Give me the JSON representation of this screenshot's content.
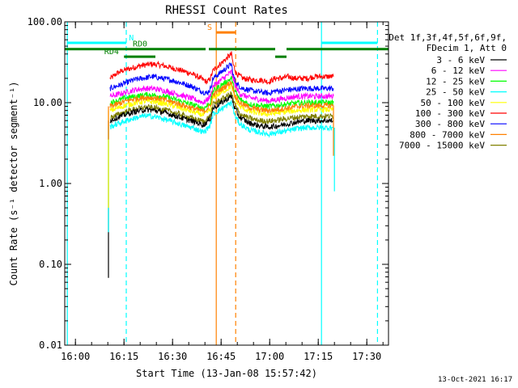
{
  "chart_data": {
    "type": "line",
    "title": "RHESSI Count Rates",
    "xlabel": "Start Time (13-Jan-08 15:57:42)",
    "ylabel": "Count Rate (s⁻¹ detector segment⁻¹)",
    "x_unit": "minutes after 15:57:42",
    "xlim": [
      -1,
      99
    ],
    "ylim": [
      0.01,
      100
    ],
    "yscale": "log",
    "x_ticks": [
      {
        "label": "16:00",
        "value": 2.3
      },
      {
        "label": "16:15",
        "value": 17.3
      },
      {
        "label": "16:30",
        "value": 32.3
      },
      {
        "label": "16:45",
        "value": 47.3
      },
      {
        "label": "17:00",
        "value": 62.3
      },
      {
        "label": "17:15",
        "value": 77.3
      },
      {
        "label": "17:30",
        "value": 92.3
      }
    ],
    "y_ticks": [
      {
        "label": "0.01",
        "value": 0.01
      },
      {
        "label": "0.10",
        "value": 0.1
      },
      {
        "label": "1.00",
        "value": 1
      },
      {
        "label": "10.00",
        "value": 10
      },
      {
        "label": "100.00",
        "value": 100
      }
    ],
    "legend": {
      "position": "right",
      "header": [
        "Det 1f,3f,4f,5f,6f,9f,",
        "FDecim 1, Att 0"
      ],
      "entries": [
        {
          "label": "3 - 6 keV",
          "color": "#000000"
        },
        {
          "label": "6 - 12 keV",
          "color": "#ff00ff"
        },
        {
          "label": "12 - 25 keV",
          "color": "#00ff00"
        },
        {
          "label": "25 - 50 keV",
          "color": "#00ffff"
        },
        {
          "label": "50 - 100 keV",
          "color": "#ffff00"
        },
        {
          "label": "100 - 300 keV",
          "color": "#ff0000"
        },
        {
          "label": "300 - 800 keV",
          "color": "#0000ff"
        },
        {
          "label": "800 - 7000 keV",
          "color": "#ff8000"
        },
        {
          "label": "7000 - 15000 keV",
          "color": "#808000"
        }
      ]
    },
    "series": [
      {
        "color": "#ff0000",
        "x": [
          13.0,
          14.0,
          15.0,
          17.0,
          20.0,
          23.0,
          26.0,
          29.0,
          32.0,
          35.0,
          38.0,
          41.0,
          43.0,
          44.0,
          44.8,
          50.5,
          51.0,
          52.0,
          54.0,
          57.0,
          60.0,
          62.0,
          64.0,
          66.0,
          68.0,
          70.0,
          72.0,
          74.0,
          76.0,
          78.0,
          80.0,
          82.0
        ],
        "y": [
          20,
          21,
          23,
          25,
          27,
          29,
          30,
          29,
          27,
          25,
          23,
          20,
          18,
          20,
          25,
          40,
          30,
          23,
          20,
          19,
          19,
          18,
          20,
          20,
          21,
          20,
          20,
          20,
          21,
          21,
          21,
          21
        ]
      },
      {
        "color": "#0000ff",
        "x": [
          13.0,
          14.0,
          15.0,
          17.0,
          20.0,
          23.0,
          26.0,
          29.0,
          32.0,
          35.0,
          38.0,
          41.0,
          43.0,
          44.0,
          44.8,
          50.5,
          51.0,
          52.0,
          54.0,
          57.0,
          60.0,
          62.0,
          64.0,
          66.0,
          68.0,
          70.0,
          72.0,
          74.0,
          76.0,
          78.0,
          80.0,
          82.0
        ],
        "y": [
          15,
          15.5,
          16,
          17,
          19,
          20,
          21,
          20,
          19,
          17.5,
          16,
          14,
          13,
          15,
          20,
          30,
          22,
          17,
          15,
          14,
          13.5,
          13,
          14,
          14,
          14.5,
          14.5,
          15,
          15,
          15,
          15,
          15,
          15
        ]
      },
      {
        "color": "#ff00ff",
        "x": [
          13.0,
          15.0,
          18.0,
          21.0,
          24.0,
          27.0,
          30.0,
          33.0,
          36.0,
          39.0,
          42.0,
          44.0,
          44.8,
          50.5,
          51.5,
          53.0,
          56.0,
          59.0,
          62.0,
          65.0,
          68.0,
          71.0,
          74.0,
          77.0,
          80.0,
          82.0
        ],
        "y": [
          12,
          12.5,
          13.5,
          14.5,
          15,
          14.8,
          14,
          13,
          12,
          11,
          10,
          12,
          16,
          24,
          17,
          13,
          11.5,
          11,
          10.5,
          11,
          11.5,
          12,
          12,
          12,
          12,
          12
        ]
      },
      {
        "color": "#00ff00",
        "x": [
          13.0,
          15.0,
          18.0,
          21.0,
          24.0,
          27.0,
          30.0,
          33.0,
          36.0,
          39.0,
          42.0,
          44.0,
          44.8,
          50.5,
          51.5,
          53.0,
          56.0,
          59.0,
          62.0,
          65.0,
          68.0,
          71.0,
          74.0,
          77.0,
          80.0,
          82.0
        ],
        "y": [
          10,
          10.5,
          11.5,
          12,
          12.5,
          12.3,
          11.8,
          11,
          10,
          9.3,
          8.5,
          10,
          14,
          20,
          14,
          11,
          9.6,
          9.2,
          9,
          9.3,
          9.6,
          9.9,
          10,
          10,
          10,
          10
        ]
      },
      {
        "color": "#ffff00",
        "x": [
          13.0,
          15.0,
          18.0,
          21.0,
          24.0,
          27.0,
          30.0,
          33.0,
          36.0,
          39.0,
          42.0,
          44.0,
          44.8,
          50.5,
          51.5,
          53.0,
          56.0,
          59.0,
          62.0,
          65.0,
          68.0,
          71.0,
          74.0,
          77.0,
          80.0,
          82.0
        ],
        "y": [
          8,
          8.5,
          9.3,
          10,
          10.4,
          10.2,
          9.7,
          9,
          8.3,
          7.6,
          7,
          8.3,
          11.5,
          16,
          11.5,
          9,
          7.8,
          7.4,
          7.2,
          7.5,
          7.8,
          8,
          8.2,
          8.2,
          8.2,
          8.2
        ]
      },
      {
        "color": "#ff8000",
        "x": [
          13.0,
          15.0,
          18.0,
          21.0,
          24.0,
          27.0,
          30.0,
          33.0,
          36.0,
          39.0,
          42.0,
          44.0,
          44.8,
          50.5,
          51.5,
          53.0,
          56.0,
          59.0,
          62.0,
          65.0,
          68.0,
          71.0,
          74.0,
          77.0,
          80.0,
          82.0
        ],
        "y": [
          9,
          9.5,
          10.5,
          11.2,
          11.6,
          11.4,
          10.8,
          10,
          9.2,
          8.4,
          7.8,
          9.2,
          12.5,
          18,
          12.5,
          10,
          8.7,
          8.2,
          8,
          8.3,
          8.6,
          9,
          9.2,
          9.2,
          9.2,
          9.2
        ]
      },
      {
        "color": "#808000",
        "x": [
          13.0,
          15.0,
          18.0,
          21.0,
          24.0,
          27.0,
          30.0,
          33.0,
          36.0,
          39.0,
          42.0,
          44.0,
          44.8,
          50.5,
          51.5,
          53.0,
          56.0,
          59.0,
          62.0,
          65.0,
          68.0,
          71.0,
          74.0,
          77.0,
          80.0,
          82.0
        ],
        "y": [
          6.5,
          7,
          7.8,
          8.4,
          8.8,
          8.6,
          8.1,
          7.5,
          6.9,
          6.3,
          5.8,
          6.9,
          9.5,
          13,
          9.5,
          7.3,
          6.4,
          6,
          5.9,
          6.1,
          6.4,
          6.6,
          6.8,
          6.8,
          6.8,
          6.8
        ]
      },
      {
        "color": "#000000",
        "x": [
          13.0,
          15.0,
          18.0,
          21.0,
          24.0,
          27.0,
          30.0,
          33.0,
          36.0,
          39.0,
          42.0,
          44.0,
          44.8,
          50.5,
          51.5,
          53.0,
          56.0,
          59.0,
          62.0,
          65.0,
          68.0,
          71.0,
          74.0,
          77.0,
          80.0,
          82.0
        ],
        "y": [
          6,
          6.5,
          7.2,
          7.8,
          8.2,
          8,
          7.5,
          6.9,
          6.3,
          5.8,
          5.3,
          6.4,
          8.5,
          12,
          8.5,
          6.6,
          5.6,
          5.2,
          5,
          5.2,
          5.5,
          5.8,
          6,
          6,
          6,
          6
        ]
      },
      {
        "color": "#00ffff",
        "x": [
          13.0,
          15.0,
          18.0,
          21.0,
          24.0,
          27.0,
          30.0,
          33.0,
          36.0,
          39.0,
          42.0,
          44.0,
          44.8,
          50.5,
          51.5,
          53.0,
          56.0,
          59.0,
          62.0,
          65.0,
          68.0,
          71.0,
          74.0,
          77.0,
          80.0,
          82.0
        ],
        "y": [
          5,
          5.4,
          6,
          6.5,
          6.9,
          6.7,
          6.2,
          5.7,
          5.2,
          4.8,
          4.3,
          5.3,
          7.2,
          10,
          7,
          5.5,
          4.6,
          4.3,
          4.1,
          4.3,
          4.5,
          4.8,
          4.9,
          4.9,
          4.9,
          4.9
        ]
      }
    ],
    "drop_lines": [
      {
        "color": "#000000",
        "x": 12.5,
        "y": [
          0.068,
          6
        ]
      },
      {
        "color": "#00ffff",
        "x": 12.5,
        "y": [
          0.25,
          5
        ]
      },
      {
        "color": "#ffff00",
        "x": 12.5,
        "y": [
          0.5,
          8
        ]
      },
      {
        "color": "#ff8000",
        "x": 12.5,
        "y": [
          3.5,
          9
        ]
      },
      {
        "color": "#00ffff",
        "x": 82.3,
        "y": [
          0.8,
          4.9
        ]
      },
      {
        "color": "#ff8000",
        "x": 82.0,
        "y": [
          2.2,
          9.2
        ]
      }
    ],
    "vertical_lines": [
      {
        "x": -0.2,
        "color": "#00ffff",
        "style": "solid"
      },
      {
        "x": 18.0,
        "color": "#00ffff",
        "style": "dashed"
      },
      {
        "x": 45.8,
        "color": "#ff8000",
        "style": "solid"
      },
      {
        "x": 51.8,
        "color": "#ff8000",
        "style": "dashed"
      },
      {
        "x": 78.3,
        "color": "#00ffff",
        "style": "solid"
      },
      {
        "x": 95.6,
        "color": "#00ffff",
        "style": "dashed"
      }
    ],
    "flag_bars": [
      {
        "label": "N",
        "color": "#00ffff",
        "y": 55,
        "segments": [
          [
            -0.2,
            18.0
          ],
          [
            78.3,
            95.6
          ]
        ],
        "label_x": 18.8
      },
      {
        "label": "RD0",
        "color": "#008000",
        "y": 46,
        "segments": [
          [
            -1,
            42.5
          ],
          [
            43.5,
            64.0
          ],
          [
            67.5,
            99
          ]
        ],
        "label_x": 20.0
      },
      {
        "label": "RD4",
        "color": "#008000",
        "y": 37,
        "segments": [
          [
            17.3,
            27.0
          ],
          [
            64.0,
            67.5
          ]
        ],
        "label_x": 11.2
      },
      {
        "label": "S",
        "color": "#ff8000",
        "y": 74,
        "segments": [
          [
            45.8,
            51.8
          ]
        ],
        "label_x": 43.0
      }
    ]
  },
  "footer": {
    "date": "13-Oct-2021 16:17"
  }
}
